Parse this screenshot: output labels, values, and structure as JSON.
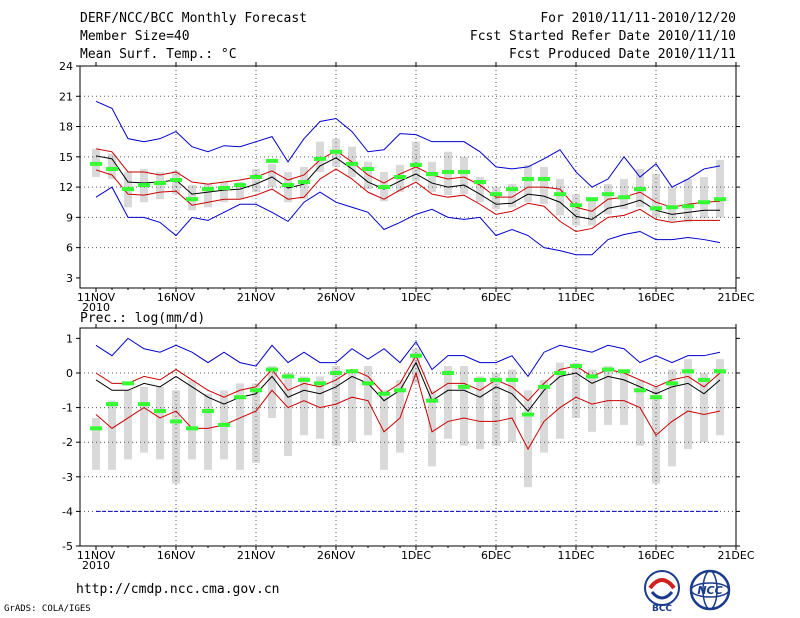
{
  "header": {
    "title": "DERF/NCC/BCC Monthly Forecast",
    "member_size": "Member Size=40",
    "variable": "Mean Surf. Temp.: °C",
    "period": "For 2010/11/11-2010/12/20",
    "started": "Fcst Started Refer Date 2010/11/10",
    "produced": "Fcst Produced Date 2010/11/11"
  },
  "footer": {
    "url": "http://cmdp.ncc.cma.gov.cn",
    "credit": "GrADS: COLA/IGES"
  },
  "logos": {
    "bcc": "BCC",
    "ncc": "NCC"
  },
  "colors": {
    "max_min": "#0000cc",
    "spread": "#cc0000",
    "mean": "#000000",
    "obs": "#33ff33",
    "box": "#d9d9d9",
    "grid": "#555555"
  },
  "chart_data": [
    {
      "type": "line",
      "title": "Mean Surf. Temp.: °C",
      "xlabel": "",
      "ylabel": "",
      "x": [
        "11NOV",
        "12NOV",
        "13NOV",
        "14NOV",
        "15NOV",
        "16NOV",
        "17NOV",
        "18NOV",
        "19NOV",
        "20NOV",
        "21NOV",
        "22NOV",
        "23NOV",
        "24NOV",
        "25NOV",
        "26NOV",
        "27NOV",
        "28NOV",
        "29NOV",
        "30NOV",
        "1DEC",
        "2DEC",
        "3DEC",
        "4DEC",
        "5DEC",
        "6DEC",
        "7DEC",
        "8DEC",
        "9DEC",
        "10DEC",
        "11DEC",
        "12DEC",
        "13DEC",
        "14DEC",
        "15DEC",
        "16DEC",
        "17DEC",
        "18DEC",
        "19DEC",
        "20DEC"
      ],
      "x_tick_labels": [
        "11NOV",
        "16NOV",
        "21NOV",
        "26NOV",
        "1DEC",
        "6DEC",
        "11DEC",
        "16DEC",
        "21DEC"
      ],
      "x_year_label": "2010",
      "y_tick_labels": [
        "3",
        "6",
        "9",
        "12",
        "15",
        "18",
        "21",
        "24"
      ],
      "ylim": [
        2,
        24
      ],
      "series": [
        {
          "name": "max",
          "color": "#0000cc",
          "values": [
            20.5,
            19.8,
            16.8,
            16.5,
            16.8,
            17.5,
            16,
            15.5,
            16.1,
            16,
            16.5,
            17,
            14.5,
            16.8,
            18.5,
            18.8,
            17.5,
            15.5,
            15.7,
            17.3,
            17.2,
            16.5,
            16.5,
            16.5,
            15.5,
            14,
            13.8,
            14,
            14.8,
            15.7,
            13.5,
            12,
            12.8,
            15,
            13,
            14.3,
            12,
            12.8,
            13.8,
            14.1
          ]
        },
        {
          "name": "upper",
          "color": "#cc0000",
          "values": [
            15.8,
            15.5,
            13.5,
            13.5,
            13.2,
            13.5,
            12.5,
            12.3,
            12.5,
            12.7,
            13,
            13.6,
            12.7,
            13.2,
            14.7,
            15.6,
            14.5,
            13.2,
            12.4,
            13.3,
            14,
            13.2,
            12.8,
            13,
            12.2,
            11,
            11,
            12,
            12,
            11.8,
            10,
            9.6,
            10.8,
            11,
            11.5,
            10.5,
            10,
            10.3,
            10.5,
            10.6
          ]
        },
        {
          "name": "mean",
          "color": "#000000",
          "values": [
            15.1,
            14.8,
            12.5,
            12.4,
            12.5,
            12.7,
            11.3,
            11.5,
            11.7,
            11.8,
            12.3,
            13,
            11.9,
            12.3,
            14.1,
            14.9,
            13.8,
            12.5,
            11.8,
            12.6,
            13.3,
            12.4,
            12,
            12.2,
            11.3,
            10.3,
            10.4,
            11.3,
            11.1,
            10.5,
            9.1,
            8.8,
            9.9,
            10.2,
            10.7,
            9.7,
            9.3,
            9.5,
            9.7,
            9.7
          ]
        },
        {
          "name": "lower",
          "color": "#cc0000",
          "values": [
            13.7,
            13.2,
            11.3,
            11.2,
            11.5,
            11.6,
            10.2,
            10.5,
            10.8,
            10.8,
            11.2,
            11.8,
            10.8,
            11,
            12.8,
            13.8,
            12.8,
            11.5,
            10.8,
            11.7,
            12.5,
            11.3,
            11,
            11.2,
            10.3,
            9.3,
            9.6,
            10.4,
            10.1,
            8.6,
            7.6,
            7.9,
            9,
            9.2,
            9.8,
            8.8,
            8.5,
            8.7,
            8.7,
            8.7
          ]
        },
        {
          "name": "min",
          "color": "#0000cc",
          "values": [
            11,
            12,
            9,
            9,
            8.5,
            7.2,
            9,
            8.7,
            9.5,
            10.3,
            10.3,
            9.5,
            8.6,
            10.5,
            11.5,
            10.5,
            10,
            9.5,
            7.8,
            8.5,
            9.3,
            9.8,
            9,
            8.8,
            9,
            7.2,
            7.8,
            7.2,
            6,
            5.7,
            5.3,
            5.3,
            6.8,
            7.3,
            7.6,
            6.8,
            6.8,
            7,
            6.8,
            6.5
          ]
        },
        {
          "name": "observed",
          "color": "#33ff33",
          "values": [
            14.3,
            13.8,
            11.8,
            12.2,
            12.4,
            12.7,
            10.8,
            11.8,
            11.9,
            12.2,
            13,
            14.6,
            12.2,
            12.5,
            14.8,
            15.5,
            14.3,
            13.8,
            12,
            13,
            14.2,
            13.3,
            13.5,
            13.5,
            12.5,
            11.3,
            11.8,
            12.8,
            12.8,
            11.3,
            10.2,
            10.8,
            11.3,
            11,
            11.8,
            9.9,
            10,
            10.1,
            10.5,
            10.8
          ]
        },
        {
          "name": "q25",
          "color": "#d9d9d9",
          "values": [
            13,
            12.8,
            10,
            10.5,
            10.8,
            11.3,
            9.7,
            10,
            10.5,
            10.8,
            11.5,
            12,
            10.5,
            10.8,
            13.5,
            14,
            13,
            11.8,
            10.6,
            11.5,
            12.6,
            11.5,
            11.2,
            11.3,
            10.5,
            9.8,
            10,
            10.5,
            10.3,
            9.2,
            8.2,
            8.2,
            9.3,
            9.8,
            10,
            9,
            8.6,
            8.5,
            8.9,
            9
          ]
        },
        {
          "name": "q75",
          "color": "#d9d9d9",
          "values": [
            15.8,
            15.3,
            13.5,
            13.8,
            13.5,
            13.6,
            12.2,
            12.3,
            12.5,
            12.5,
            13.8,
            14.3,
            13.5,
            14,
            16.5,
            16.8,
            16,
            14.5,
            13.5,
            14.2,
            16.5,
            14.5,
            15.5,
            15,
            13,
            12,
            12.3,
            14.2,
            14,
            12.8,
            11.3,
            11,
            12.3,
            12.8,
            13.8,
            13.3,
            12,
            12.8,
            13,
            14.7
          ]
        }
      ]
    },
    {
      "type": "line",
      "title": "Prec.: log(mm/d)",
      "xlabel": "",
      "ylabel": "",
      "x": [
        "11NOV",
        "12NOV",
        "13NOV",
        "14NOV",
        "15NOV",
        "16NOV",
        "17NOV",
        "18NOV",
        "19NOV",
        "20NOV",
        "21NOV",
        "22NOV",
        "23NOV",
        "24NOV",
        "25NOV",
        "26NOV",
        "27NOV",
        "28NOV",
        "29NOV",
        "30NOV",
        "1DEC",
        "2DEC",
        "3DEC",
        "4DEC",
        "5DEC",
        "6DEC",
        "7DEC",
        "8DEC",
        "9DEC",
        "10DEC",
        "11DEC",
        "12DEC",
        "13DEC",
        "14DEC",
        "15DEC",
        "16DEC",
        "17DEC",
        "18DEC",
        "19DEC",
        "20DEC"
      ],
      "x_tick_labels": [
        "11NOV",
        "16NOV",
        "21NOV",
        "26NOV",
        "1DEC",
        "6DEC",
        "11DEC",
        "16DEC",
        "21DEC"
      ],
      "x_year_label": "2010",
      "y_tick_labels": [
        "-5",
        "-4",
        "-3",
        "-2",
        "-1",
        "0",
        "1"
      ],
      "ylim": [
        -5,
        1.3
      ],
      "series": [
        {
          "name": "max",
          "color": "#0000cc",
          "values": [
            0.8,
            0.5,
            1,
            0.7,
            0.6,
            0.8,
            0.6,
            0.3,
            0.6,
            0.3,
            0.2,
            0.8,
            0.3,
            0.6,
            0.3,
            0.3,
            0.7,
            0.4,
            0.7,
            0.3,
            0.9,
            0.1,
            0.5,
            0.5,
            0.3,
            0.3,
            0.5,
            -0.1,
            0.6,
            0.8,
            0.7,
            0.6,
            0.8,
            0.7,
            0.3,
            0.5,
            0.3,
            0.5,
            0.5,
            0.6
          ]
        },
        {
          "name": "upper",
          "color": "#cc0000",
          "values": [
            0,
            -0.3,
            -0.3,
            -0.1,
            -0.2,
            0.1,
            -0.2,
            -0.5,
            -0.7,
            -0.5,
            -0.4,
            0.1,
            -0.5,
            -0.3,
            -0.4,
            -0.2,
            0.1,
            -0.1,
            -0.6,
            -0.3,
            0.5,
            -0.6,
            -0.3,
            -0.3,
            -0.5,
            -0.2,
            -0.4,
            -0.8,
            -0.3,
            0.1,
            0.2,
            -0.1,
            0.1,
            0,
            -0.2,
            -0.4,
            -0.2,
            -0.1,
            -0.4,
            0
          ]
        },
        {
          "name": "mean",
          "color": "#000000",
          "values": [
            -0.2,
            -0.5,
            -0.5,
            -0.3,
            -0.4,
            -0.1,
            -0.4,
            -0.7,
            -0.9,
            -0.7,
            -0.6,
            -0.1,
            -0.7,
            -0.5,
            -0.6,
            -0.4,
            -0.1,
            -0.3,
            -0.8,
            -0.5,
            0.3,
            -0.8,
            -0.5,
            -0.5,
            -0.7,
            -0.4,
            -0.6,
            -1.1,
            -0.5,
            -0.1,
            0,
            -0.3,
            -0.1,
            -0.2,
            -0.4,
            -0.6,
            -0.4,
            -0.3,
            -0.6,
            -0.2
          ]
        },
        {
          "name": "lower",
          "color": "#cc0000",
          "values": [
            -1.2,
            -1.6,
            -1.3,
            -1,
            -1.3,
            -1.1,
            -1.6,
            -1.6,
            -1.5,
            -1.3,
            -1.1,
            -0.5,
            -1,
            -0.8,
            -1,
            -0.9,
            -0.7,
            -0.8,
            -1.7,
            -1.3,
            0,
            -1.7,
            -1.4,
            -1.3,
            -1.4,
            -1.4,
            -1.3,
            -2.2,
            -1.4,
            -1,
            -0.7,
            -0.9,
            -0.8,
            -0.8,
            -1,
            -1.8,
            -1.4,
            -1.1,
            -1.2,
            -1.1
          ]
        },
        {
          "name": "min",
          "color": "#0000cc",
          "values": [
            -4,
            -4,
            -4,
            -4,
            -4,
            -4,
            -4,
            -4,
            -4,
            -4,
            -4,
            -4,
            -4,
            -4,
            -4,
            -4,
            -4,
            -4,
            -4,
            -4,
            -4,
            -4,
            -4,
            -4,
            -4,
            -4,
            -4,
            -4,
            -4,
            -4,
            -4,
            -4,
            -4,
            -4,
            -4,
            -4,
            -4,
            -4,
            -4,
            -4
          ]
        },
        {
          "name": "observed",
          "color": "#33ff33",
          "values": [
            -1.6,
            -0.9,
            -0.3,
            -0.9,
            -1.1,
            -1.4,
            -1.6,
            -1.1,
            -1.5,
            -0.7,
            -0.5,
            0.1,
            -0.1,
            -0.2,
            -0.3,
            0,
            0.05,
            -0.3,
            -0.6,
            -0.5,
            0.5,
            -0.8,
            0,
            -0.4,
            -0.2,
            -0.2,
            -0.2,
            -1.2,
            -0.4,
            0,
            0.2,
            -0.1,
            0.1,
            0.05,
            -0.5,
            -0.7,
            -0.3,
            0.05,
            -0.2,
            0.05
          ]
        },
        {
          "name": "q25",
          "color": "#d9d9d9",
          "values": [
            -2.8,
            -2.8,
            -2.5,
            -2.3,
            -2.5,
            -3.2,
            -2.5,
            -2.8,
            -2.5,
            -2.8,
            -2.6,
            -1.3,
            -2.4,
            -1.8,
            -1.9,
            -2.1,
            -2,
            -1.8,
            -2.8,
            -2.3,
            -0.3,
            -2.7,
            -1.9,
            -2.1,
            -2.2,
            -2.1,
            -2,
            -3.3,
            -2.3,
            -1.9,
            -1.3,
            -1.7,
            -1.5,
            -1.5,
            -2.1,
            -3.2,
            -2.7,
            -2.2,
            -2,
            -1.8
          ]
        },
        {
          "name": "q75",
          "color": "#d9d9d9",
          "values": [
            -1.3,
            -0.8,
            -0.5,
            -0.4,
            -0.4,
            -0.5,
            -0.2,
            -0.6,
            -0.5,
            -0.3,
            -0.3,
            0.2,
            0,
            -0.1,
            -0.1,
            0.2,
            0.1,
            0.2,
            -0.5,
            -0.2,
            0.7,
            -0.5,
            0.2,
            0.2,
            -0.1,
            0,
            0.1,
            -0.5,
            -0.2,
            0.3,
            0.3,
            0.1,
            0.2,
            0.1,
            -0.2,
            -0.4,
            0.1,
            0.4,
            0,
            0.4
          ]
        }
      ]
    }
  ]
}
